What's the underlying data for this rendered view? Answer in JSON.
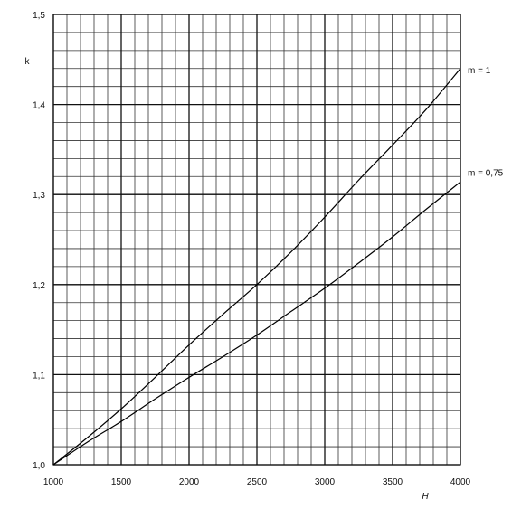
{
  "chart_data": {
    "type": "line",
    "title": "",
    "xlabel": "H",
    "ylabel": "k",
    "xlim": [
      1000,
      4000
    ],
    "ylim": [
      1.0,
      1.5
    ],
    "grid": true,
    "x_minor_step": 100,
    "y_minor_step": 0.02,
    "x_ticks": [
      1000,
      1500,
      2000,
      2500,
      3000,
      3500,
      4000
    ],
    "x_tick_labels": [
      "1000",
      "1500",
      "2000",
      "2500",
      "3000",
      "3500",
      "4000"
    ],
    "y_ticks": [
      1.0,
      1.1,
      1.2,
      1.3,
      1.4,
      1.5
    ],
    "y_tick_labels": [
      "1,0",
      "1,1",
      "1,2",
      "1,3",
      "1,4",
      "1,5"
    ],
    "series": [
      {
        "name": "m = 1",
        "x": [
          1000,
          1250,
          1500,
          1750,
          2000,
          2250,
          2500,
          2750,
          3000,
          3250,
          3500,
          3750,
          4000
        ],
        "y": [
          1.0,
          1.03,
          1.062,
          1.097,
          1.133,
          1.167,
          1.2,
          1.236,
          1.275,
          1.316,
          1.355,
          1.395,
          1.44
        ]
      },
      {
        "name": "m = 0,75",
        "x": [
          1000,
          1250,
          1500,
          1750,
          2000,
          2250,
          2500,
          2750,
          3000,
          3250,
          3500,
          3750,
          4000
        ],
        "y": [
          1.0,
          1.025,
          1.048,
          1.073,
          1.097,
          1.12,
          1.144,
          1.17,
          1.196,
          1.224,
          1.253,
          1.284,
          1.314
        ]
      }
    ]
  }
}
